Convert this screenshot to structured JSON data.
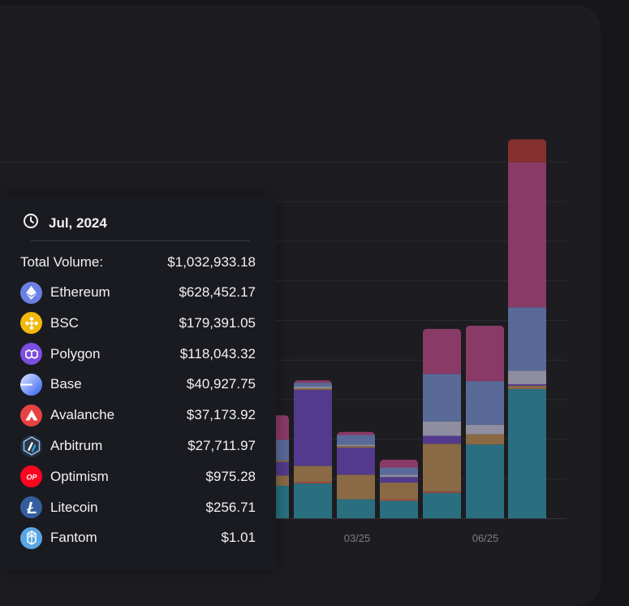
{
  "chart_data": {
    "type": "bar",
    "stacked": true,
    "x_tick_labels": [
      "03/25",
      "06/25"
    ],
    "series": [
      {
        "key": "teal",
        "color": "#2a6f80"
      },
      {
        "key": "red_thin",
        "color": "#a14a3c"
      },
      {
        "key": "orange",
        "color": "#8a6a45"
      },
      {
        "key": "purple",
        "color": "#533a8c"
      },
      {
        "key": "gold_thin",
        "color": "#8a6a45"
      },
      {
        "key": "gray",
        "color": "#8e8ea0"
      },
      {
        "key": "slate_blue",
        "color": "#5a6a98"
      },
      {
        "key": "magenta",
        "color": "#8a3a66"
      },
      {
        "key": "dark_red",
        "color": "#86302f"
      }
    ],
    "bars": [
      {
        "partial": true,
        "values": {
          "teal": 41,
          "orange": 13,
          "purple": 17,
          "gold_thin": 2,
          "slate_blue": 26,
          "magenta": 31
        }
      },
      {
        "values": {
          "teal": 44,
          "red_thin": 2,
          "orange": 20,
          "purple": 96,
          "gold_thin": 2,
          "gray": 2,
          "slate_blue": 5,
          "magenta": 3
        }
      },
      {
        "values": {
          "teal": 24,
          "orange": 31,
          "purple": 34,
          "gold_thin": 2,
          "gray": 2,
          "slate_blue": 12,
          "magenta": 4
        }
      },
      {
        "values": {
          "teal": 22,
          "red_thin": 2,
          "orange": 21,
          "purple": 7,
          "gray": 3,
          "slate_blue": 9,
          "magenta": 10
        }
      },
      {
        "values": {
          "teal": 32,
          "red_thin": 2,
          "orange": 60,
          "purple": 10,
          "gray": 18,
          "slate_blue": 60,
          "magenta": 57
        }
      },
      {
        "values": {
          "teal": 93,
          "orange": 13,
          "gray": 12,
          "slate_blue": 55,
          "magenta": 70
        }
      },
      {
        "values": {
          "teal": 163,
          "orange": 4,
          "purple": 2,
          "gray": 17,
          "slate_blue": 80,
          "magenta": 183,
          "dark_red": 29
        }
      }
    ],
    "ylim": [
      0,
      500
    ],
    "grid": true,
    "legend": "none"
  },
  "tooltip": {
    "date": "Jul, 2024",
    "total_label": "Total Volume:",
    "total_value": "$1,032,933.18",
    "rows": [
      {
        "name": "Ethereum",
        "value": "$628,452.17",
        "icon": "ethereum-icon",
        "color": "#6b7fe3"
      },
      {
        "name": "BSC",
        "value": "$179,391.05",
        "icon": "bsc-icon",
        "color": "#f0b90b"
      },
      {
        "name": "Polygon",
        "value": "$118,043.32",
        "icon": "polygon-icon",
        "color": "#7b4ee0"
      },
      {
        "name": "Base",
        "value": "$40,927.75",
        "icon": "base-icon",
        "color": "#3a6ff0"
      },
      {
        "name": "Avalanche",
        "value": "$37,173.92",
        "icon": "avalanche-icon",
        "color": "#e84142"
      },
      {
        "name": "Arbitrum",
        "value": "$27,711.97",
        "icon": "arbitrum-icon",
        "color": "#213147"
      },
      {
        "name": "Optimism",
        "value": "$975.28",
        "icon": "optimism-icon",
        "color": "#ff0420"
      },
      {
        "name": "Litecoin",
        "value": "$256.71",
        "icon": "litecoin-icon",
        "color": "#345d9d"
      },
      {
        "name": "Fantom",
        "value": "$1.01",
        "icon": "fantom-icon",
        "color": "#5aa7e6"
      }
    ]
  }
}
